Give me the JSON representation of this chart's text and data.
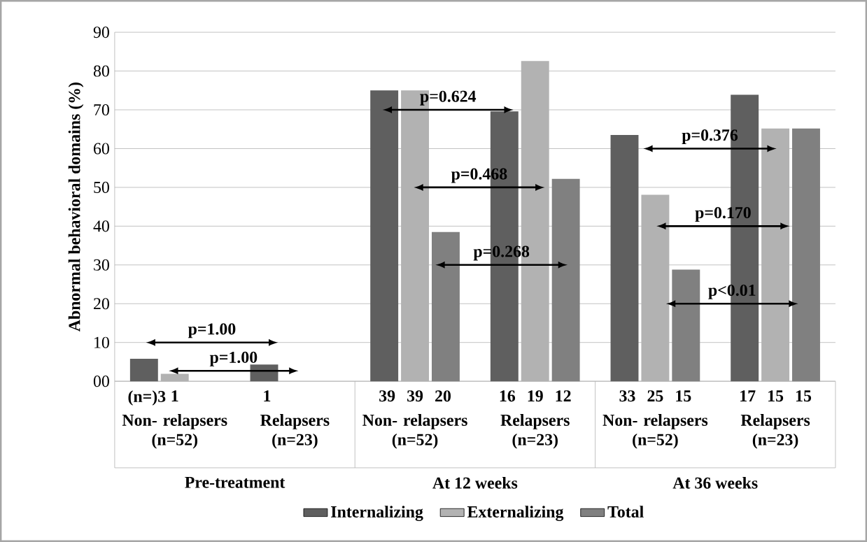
{
  "chart_data": {
    "type": "bar",
    "ylabel": "Abnormal behavioral domains (%)",
    "categories": [
      "Non- relapsers (n=52)",
      "Relapsers (n=23)",
      "Non- relapsers (n=52)",
      "Relapsers (n=23)",
      "Non- relapsers (n=52)",
      "Relapsers (n=23)"
    ],
    "series": [
      {
        "name": "Internalizing",
        "color": "#5f5f5f",
        "values": [
          5.8,
          4.3,
          75,
          69.6,
          63.5,
          73.9
        ]
      },
      {
        "name": "Externalizing",
        "color": "#b2b2b2",
        "values": [
          1.9,
          null,
          75,
          82.6,
          48.1,
          65.2
        ]
      },
      {
        "name": "Total",
        "color": "#808080",
        "values": [
          null,
          null,
          38.5,
          52.2,
          28.8,
          65.2
        ]
      }
    ],
    "ylim": [
      0,
      90
    ],
    "yticks": [
      {
        "value": 0,
        "label": "00"
      },
      10,
      20,
      30,
      40,
      50,
      60,
      70,
      80,
      90
    ],
    "grid": "y",
    "legend": "bottom",
    "annotations": [
      "Pre-treatment",
      "At 12 weeks",
      "At 36 weeks",
      "p=1.00",
      "p=1.00",
      "p=0.624",
      "p=0.468",
      "p=0.268",
      "p=0.376",
      "p=0.170",
      "p<0.01",
      "(n=)3",
      "1",
      "1",
      "39",
      "39",
      "20",
      "16",
      "19",
      "12",
      "33",
      "25",
      "15",
      "17",
      "15",
      "15"
    ]
  }
}
